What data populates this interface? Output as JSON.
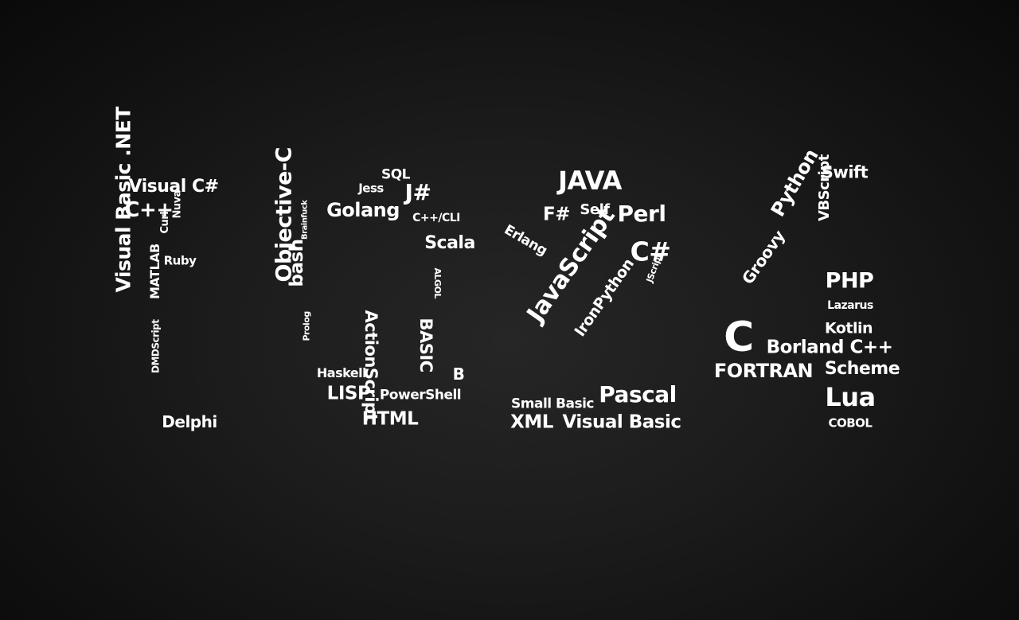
{
  "digit_1": {
    "visual_csharp": "Visual C#",
    "cpp": "C++",
    "nuva": "Nuva",
    "curl": "Curl",
    "ruby": "Ruby",
    "vb_net": "Visual Basic .NET",
    "matlab": "MATLAB",
    "dmdscript": "DMDScript",
    "delphi": "Delphi"
  },
  "digit_0": {
    "sql": "SQL",
    "jess": "Jess",
    "jsharp": "J#",
    "golang": "Golang",
    "cpp_cli": "C++/CLI",
    "brainfuck": "Brainfuck",
    "scala": "Scala",
    "bash": "bash",
    "objective_c": "Objective-C",
    "algol": "ALGOL",
    "actionscript": "ActionScript",
    "basic": "BASIC",
    "prolog": "Prolog",
    "haskell": "Haskell",
    "b": "B",
    "lisp": "LISP",
    "powershell": "PowerShell",
    "html": "HTML"
  },
  "digit_2": {
    "java": "JAVA",
    "fsharp": "F#",
    "self": "Self",
    "perl": "Perl",
    "erlang": "Erlang",
    "csharp": "C#",
    "jscript": "JScript",
    "javascript": "JavaScript",
    "ironpython": "IronPython",
    "pascal": "Pascal",
    "small_basic": "Small Basic",
    "xml": "XML",
    "visual_basic": "Visual Basic"
  },
  "digit_4": {
    "swift": "Swift",
    "python": "Python",
    "vbscript": "VBScript",
    "groovy": "Groovy",
    "php": "PHP",
    "lazarus": "Lazarus",
    "c": "C",
    "kotlin": "Kotlin",
    "borland_cpp": "Borland C++",
    "fortran": "FORTRAN",
    "scheme": "Scheme",
    "lua": "Lua",
    "cobol": "COBOL"
  }
}
